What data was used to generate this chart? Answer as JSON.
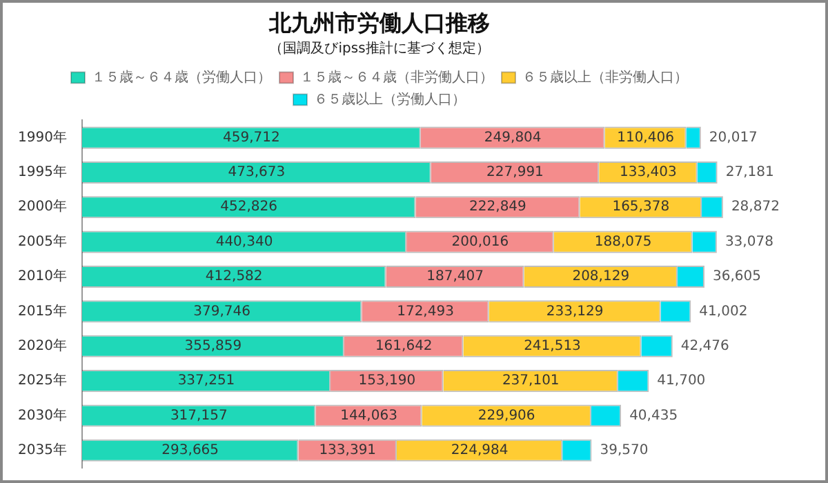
{
  "chart_data": {
    "type": "bar",
    "orientation": "horizontal",
    "stacked": true,
    "title": "北九州市労働人口推移",
    "subtitle": "（国調及びipss推計に基づく想定）",
    "categories": [
      "1990年",
      "1995年",
      "2000年",
      "2005年",
      "2010年",
      "2015年",
      "2020年",
      "2025年",
      "2030年",
      "2035年"
    ],
    "series": [
      {
        "name": "１５歳～６４歳（労働人口）",
        "color": "#1fd8b8",
        "values": [
          459712,
          473673,
          452826,
          440340,
          412582,
          379746,
          355859,
          337251,
          317157,
          293665
        ],
        "value_labels": [
          "459,712",
          "473,673",
          "452,826",
          "440,340",
          "412,582",
          "379,746",
          "355,859",
          "337,251",
          "317,157",
          "293,665"
        ]
      },
      {
        "name": "１５歳～６４歳（非労働人口）",
        "color": "#f48c8c",
        "values": [
          249804,
          227991,
          222849,
          200016,
          187407,
          172493,
          161642,
          153190,
          144063,
          133391
        ],
        "value_labels": [
          "249,804",
          "227,991",
          "222,849",
          "200,016",
          "187,407",
          "172,493",
          "161,642",
          "153,190",
          "144,063",
          "133,391"
        ]
      },
      {
        "name": "６５歳以上（非労働人口）",
        "color": "#ffcc33",
        "values": [
          110406,
          133403,
          165378,
          188075,
          208129,
          233129,
          241513,
          237101,
          229906,
          224984
        ],
        "value_labels": [
          "110,406",
          "133,403",
          "165,378",
          "188,075",
          "208,129",
          "233,129",
          "241,513",
          "237,101",
          "229,906",
          "224,984"
        ]
      },
      {
        "name": "６５歳以上（労働人口）",
        "color": "#00e0f0",
        "values": [
          20017,
          27181,
          28872,
          33078,
          36605,
          41002,
          42476,
          41700,
          40435,
          39570
        ],
        "value_labels": [
          "20,017",
          "27,181",
          "28,872",
          "33,078",
          "36,605",
          "41,002",
          "42,476",
          "41,700",
          "40,435",
          "39,570"
        ]
      }
    ],
    "legend": "top"
  }
}
